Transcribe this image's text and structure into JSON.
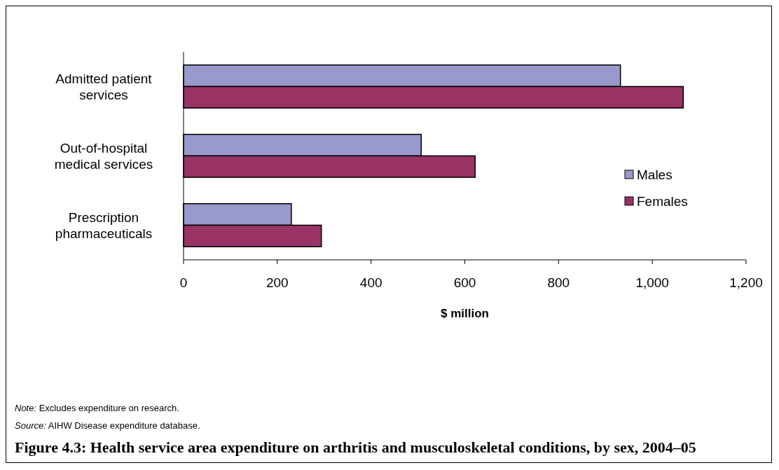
{
  "chart_data": {
    "type": "bar",
    "orientation": "horizontal",
    "title": "Figure 4.3: Health service area expenditure on arthritis and musculoskeletal conditions, by sex, 2004–05",
    "xlabel": "$ million",
    "categories": [
      "Admitted patient services",
      "Out-of-hospital medical services",
      "Prescription pharmaceuticals"
    ],
    "series": [
      {
        "name": "Males",
        "color": "#9999cc",
        "values": [
          932,
          507,
          230
        ]
      },
      {
        "name": "Females",
        "color": "#993366",
        "values": [
          1066,
          622,
          294
        ]
      }
    ],
    "xlim": [
      0,
      1200
    ],
    "xticks": [
      0,
      200,
      400,
      600,
      800,
      {
        "value": 1000,
        "label": "1,000"
      },
      {
        "value": 1200,
        "label": "1,200"
      }
    ],
    "legend": "right",
    "grid": false,
    "annotations": [
      "Note: Excludes expenditure on research.",
      "Source: AIHW Disease expenditure database."
    ]
  }
}
